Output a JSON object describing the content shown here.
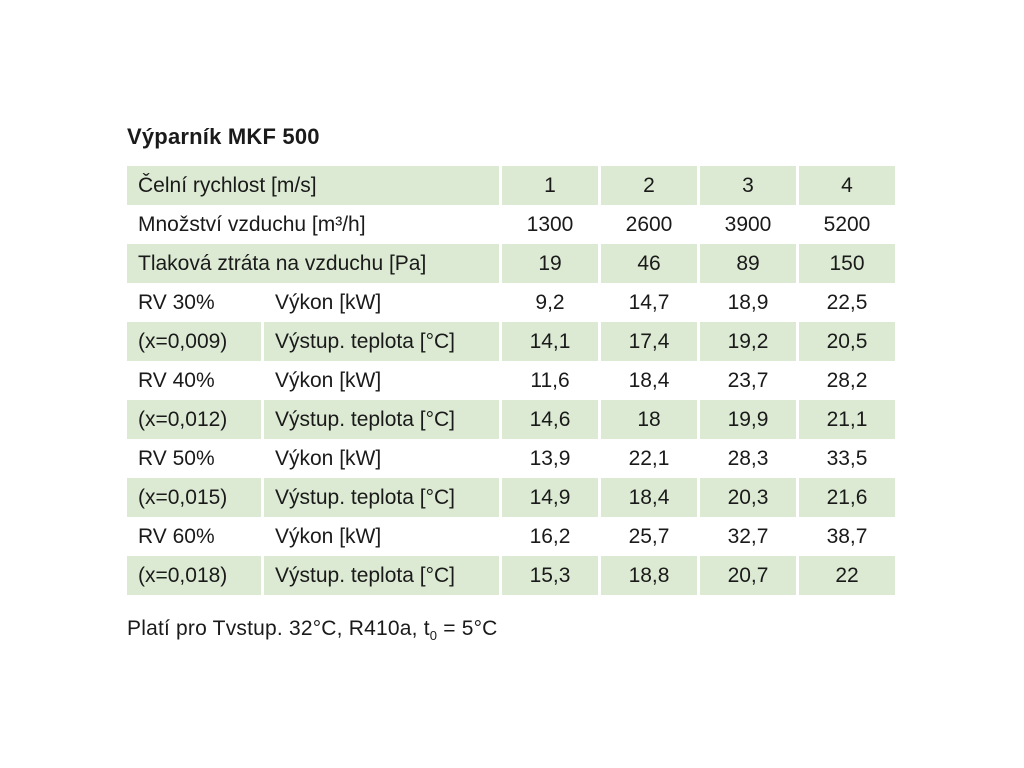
{
  "title": "Výparník MKF 500",
  "colors": {
    "row_green": "#dcead3"
  },
  "table": {
    "rows": [
      {
        "label": "Čelní rychlost [m/s]",
        "values": [
          "1",
          "2",
          "3",
          "4"
        ]
      },
      {
        "label": "Množství vzduchu [m³/h]",
        "values": [
          "1300",
          "2600",
          "3900",
          "5200"
        ]
      },
      {
        "label": "Tlaková ztráta na vzduchu [Pa]",
        "values": [
          "19",
          "46",
          "89",
          "150"
        ]
      },
      {
        "c1": "RV 30%",
        "c2": "Výkon [kW]",
        "values": [
          "9,2",
          "14,7",
          "18,9",
          "22,5"
        ]
      },
      {
        "c1": "(x=0,009)",
        "c2": "Výstup. teplota [°C]",
        "values": [
          "14,1",
          "17,4",
          "19,2",
          "20,5"
        ]
      },
      {
        "c1": "RV 40%",
        "c2": "Výkon [kW]",
        "values": [
          "11,6",
          "18,4",
          "23,7",
          "28,2"
        ]
      },
      {
        "c1": "(x=0,012)",
        "c2": "Výstup. teplota [°C]",
        "values": [
          "14,6",
          "18",
          "19,9",
          "21,1"
        ]
      },
      {
        "c1": "RV 50%",
        "c2": "Výkon [kW]",
        "values": [
          "13,9",
          "22,1",
          "28,3",
          "33,5"
        ]
      },
      {
        "c1": "(x=0,015)",
        "c2": "Výstup. teplota [°C]",
        "values": [
          "14,9",
          "18,4",
          "20,3",
          "21,6"
        ]
      },
      {
        "c1": "RV 60%",
        "c2": "Výkon [kW]",
        "values": [
          "16,2",
          "25,7",
          "32,7",
          "38,7"
        ]
      },
      {
        "c1": "(x=0,018)",
        "c2": "Výstup. teplota [°C]",
        "values": [
          "15,3",
          "18,8",
          "20,7",
          "22"
        ]
      }
    ]
  },
  "footer": {
    "part1": "Platí pro Tvstup. 32°C, R410a, t",
    "sub": "0",
    "part2": " = 5°C"
  }
}
